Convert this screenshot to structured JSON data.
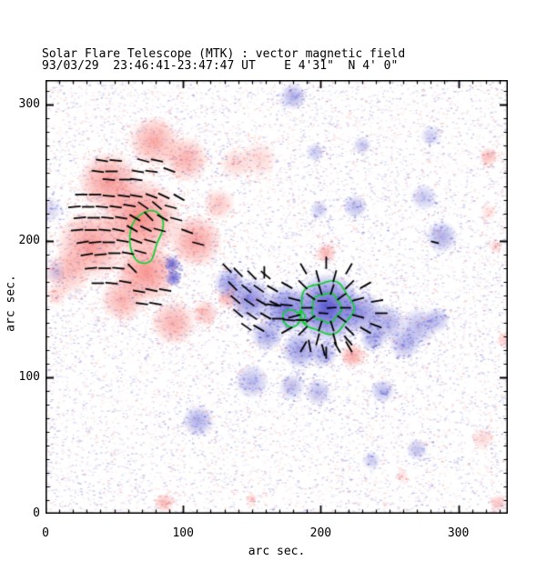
{
  "header": {
    "title": "Solar Flare Telescope (MTK) : vector magnetic field",
    "subtitle": "93/03/29  23:46:41-23:47:47 UT    E 4'31\"  N 4' 0\""
  },
  "chart_data": {
    "type": "heatmap",
    "subtype": "vector-magnetogram",
    "title": "Solar Flare Telescope (MTK) : vector magnetic field",
    "subtitle": "93/03/29  23:46:41-23:47:47 UT    E 4'31\"  N 4' 0\"",
    "xlabel": "arc sec.",
    "ylabel": "arc sec.",
    "xlim": [
      0,
      336
    ],
    "ylim": [
      0,
      318
    ],
    "x_ticks": [
      0,
      100,
      200,
      300
    ],
    "y_ticks": [
      0,
      100,
      200,
      300
    ],
    "minor_tick_step": 10,
    "grid": false,
    "legend": "none",
    "colors": {
      "positive_polarity": "#f46e69",
      "negative_polarity": "#4646cd",
      "positive_rgb": [
        246,
        112,
        106
      ],
      "negative_rgb": [
        72,
        72,
        205
      ],
      "contour": "#0ed22e",
      "vector": "#000000",
      "frame": "#000000",
      "background": "#ffffff"
    },
    "polarity_note": "red = positive line-of-sight field, blue = negative; black segments = transverse field; green = flare/sunspot contours",
    "blobs": [
      {
        "x": 69,
        "y": 217,
        "r": 30,
        "pol": "P",
        "i": 0.8
      },
      {
        "x": 46,
        "y": 243,
        "r": 23,
        "pol": "P",
        "i": 0.7
      },
      {
        "x": 79,
        "y": 273,
        "r": 19,
        "pol": "P",
        "i": 0.6
      },
      {
        "x": 102,
        "y": 260,
        "r": 17,
        "pol": "P",
        "i": 0.55
      },
      {
        "x": 33,
        "y": 197,
        "r": 26,
        "pol": "P",
        "i": 0.7
      },
      {
        "x": 73,
        "y": 177,
        "r": 23,
        "pol": "P",
        "i": 0.75
      },
      {
        "x": 109,
        "y": 200,
        "r": 20,
        "pol": "P",
        "i": 0.65
      },
      {
        "x": 56,
        "y": 157,
        "r": 17,
        "pol": "P",
        "i": 0.55
      },
      {
        "x": 16,
        "y": 177,
        "r": 17,
        "pol": "P",
        "i": 0.45
      },
      {
        "x": 93,
        "y": 140,
        "r": 17,
        "pol": "P",
        "i": 0.55
      },
      {
        "x": 116,
        "y": 147,
        "r": 10,
        "pol": "P",
        "i": 0.45
      },
      {
        "x": 132,
        "y": 158,
        "r": 8,
        "pol": "P",
        "i": 0.5
      },
      {
        "x": 126,
        "y": 227,
        "r": 12,
        "pol": "P",
        "i": 0.4
      },
      {
        "x": 155,
        "y": 260,
        "r": 14,
        "pol": "P",
        "i": 0.28
      },
      {
        "x": 138,
        "y": 257,
        "r": 12,
        "pol": "P",
        "i": 0.3
      },
      {
        "x": 204,
        "y": 191,
        "r": 8,
        "pol": "P",
        "i": 0.5
      },
      {
        "x": 223,
        "y": 116,
        "r": 9,
        "pol": "P",
        "i": 0.6
      },
      {
        "x": 322,
        "y": 262,
        "r": 7,
        "pol": "P",
        "i": 0.5
      },
      {
        "x": 318,
        "y": 55,
        "r": 8,
        "pol": "P",
        "i": 0.3
      },
      {
        "x": 329,
        "y": 8,
        "r": 6,
        "pol": "P",
        "i": 0.45
      },
      {
        "x": 86,
        "y": 8,
        "r": 7,
        "pol": "P",
        "i": 0.5
      },
      {
        "x": 150,
        "y": 11,
        "r": 4,
        "pol": "P",
        "i": 0.4
      },
      {
        "x": 333,
        "y": 128,
        "r": 5,
        "pol": "P",
        "i": 0.35
      },
      {
        "x": 322,
        "y": 221,
        "r": 6,
        "pol": "P",
        "i": 0.25
      },
      {
        "x": 327,
        "y": 196,
        "r": 5,
        "pol": "P",
        "i": 0.3
      },
      {
        "x": 8,
        "y": 160,
        "r": 8,
        "pol": "P",
        "i": 0.3
      },
      {
        "x": 259,
        "y": 28,
        "r": 5,
        "pol": "P",
        "i": 0.25
      },
      {
        "x": 205,
        "y": 151,
        "r": 26,
        "pol": "N",
        "i": 0.92
      },
      {
        "x": 175,
        "y": 150,
        "r": 18,
        "pol": "N",
        "i": 0.75
      },
      {
        "x": 149,
        "y": 157,
        "r": 16,
        "pol": "N",
        "i": 0.65
      },
      {
        "x": 134,
        "y": 169,
        "r": 12,
        "pol": "N",
        "i": 0.55
      },
      {
        "x": 230,
        "y": 147,
        "r": 16,
        "pol": "N",
        "i": 0.6
      },
      {
        "x": 248,
        "y": 140,
        "r": 14,
        "pol": "N",
        "i": 0.45
      },
      {
        "x": 271,
        "y": 137,
        "r": 14,
        "pol": "N",
        "i": 0.4
      },
      {
        "x": 185,
        "y": 120,
        "r": 14,
        "pol": "N",
        "i": 0.55
      },
      {
        "x": 202,
        "y": 117,
        "r": 10,
        "pol": "N",
        "i": 0.5
      },
      {
        "x": 161,
        "y": 131,
        "r": 12,
        "pol": "N",
        "i": 0.5
      },
      {
        "x": 179,
        "y": 93,
        "r": 10,
        "pol": "N",
        "i": 0.38
      },
      {
        "x": 198,
        "y": 89,
        "r": 10,
        "pol": "N",
        "i": 0.38
      },
      {
        "x": 245,
        "y": 90,
        "r": 9,
        "pol": "N",
        "i": 0.4
      },
      {
        "x": 150,
        "y": 97,
        "r": 13,
        "pol": "N",
        "i": 0.38
      },
      {
        "x": 111,
        "y": 68,
        "r": 12,
        "pol": "N",
        "i": 0.45
      },
      {
        "x": 270,
        "y": 47,
        "r": 8,
        "pol": "N",
        "i": 0.35
      },
      {
        "x": 238,
        "y": 129,
        "r": 10,
        "pol": "N",
        "i": 0.5
      },
      {
        "x": 261,
        "y": 125,
        "r": 12,
        "pol": "N",
        "i": 0.42
      },
      {
        "x": 284,
        "y": 142,
        "r": 10,
        "pol": "N",
        "i": 0.38
      },
      {
        "x": 180,
        "y": 306,
        "r": 10,
        "pol": "N",
        "i": 0.45
      },
      {
        "x": 196,
        "y": 265,
        "r": 7,
        "pol": "N",
        "i": 0.32
      },
      {
        "x": 230,
        "y": 270,
        "r": 7,
        "pol": "N",
        "i": 0.32
      },
      {
        "x": 199,
        "y": 223,
        "r": 7,
        "pol": "N",
        "i": 0.32
      },
      {
        "x": 225,
        "y": 225,
        "r": 9,
        "pol": "N",
        "i": 0.38
      },
      {
        "x": 275,
        "y": 232,
        "r": 10,
        "pol": "N",
        "i": 0.32
      },
      {
        "x": 288,
        "y": 203,
        "r": 12,
        "pol": "N",
        "i": 0.45
      },
      {
        "x": 92,
        "y": 183,
        "r": 6,
        "pol": "N",
        "i": 0.85
      },
      {
        "x": 93,
        "y": 173,
        "r": 6,
        "pol": "N",
        "i": 0.8
      },
      {
        "x": 3,
        "y": 223,
        "r": 10,
        "pol": "N",
        "i": 0.22
      },
      {
        "x": 7,
        "y": 177,
        "r": 8,
        "pol": "N",
        "i": 0.22
      },
      {
        "x": 280,
        "y": 277,
        "r": 8,
        "pol": "N",
        "i": 0.28
      },
      {
        "x": 237,
        "y": 39,
        "r": 7,
        "pol": "N",
        "i": 0.3
      }
    ],
    "vectors": [
      [
        41,
        259,
        -10
      ],
      [
        51,
        259,
        -5
      ],
      [
        71,
        259,
        -15
      ],
      [
        81,
        259,
        -12
      ],
      [
        38,
        251,
        -8
      ],
      [
        48,
        251,
        0
      ],
      [
        67,
        251,
        -10
      ],
      [
        77,
        251,
        -8
      ],
      [
        90,
        252,
        -20
      ],
      [
        46,
        245,
        -5
      ],
      [
        58,
        245,
        0
      ],
      [
        66,
        245,
        -8
      ],
      [
        26,
        234,
        0
      ],
      [
        36,
        234,
        0
      ],
      [
        46,
        233,
        -5
      ],
      [
        57,
        233,
        -8
      ],
      [
        66,
        233,
        -10
      ],
      [
        77,
        233,
        -20
      ],
      [
        86,
        233,
        -25
      ],
      [
        97,
        232,
        -30
      ],
      [
        21,
        225,
        5
      ],
      [
        31,
        225,
        0
      ],
      [
        41,
        225,
        -5
      ],
      [
        51,
        225,
        -8
      ],
      [
        61,
        226,
        -10
      ],
      [
        71,
        226,
        -35
      ],
      [
        81,
        226,
        -40
      ],
      [
        91,
        225,
        -15
      ],
      [
        25,
        217,
        5
      ],
      [
        35,
        217,
        0
      ],
      [
        45,
        217,
        -5
      ],
      [
        55,
        217,
        -10
      ],
      [
        65,
        217,
        -30
      ],
      [
        75,
        218,
        -45
      ],
      [
        85,
        217,
        -30
      ],
      [
        95,
        216,
        -15
      ],
      [
        23,
        208,
        5
      ],
      [
        33,
        208,
        0
      ],
      [
        43,
        208,
        -5
      ],
      [
        53,
        208,
        -12
      ],
      [
        63,
        209,
        -30
      ],
      [
        73,
        209,
        -25
      ],
      [
        83,
        208,
        -15
      ],
      [
        27,
        199,
        10
      ],
      [
        36,
        199,
        5
      ],
      [
        46,
        199,
        0
      ],
      [
        56,
        200,
        -10
      ],
      [
        66,
        200,
        -20
      ],
      [
        76,
        200,
        -15
      ],
      [
        30,
        190,
        10
      ],
      [
        40,
        190,
        5
      ],
      [
        50,
        191,
        0
      ],
      [
        60,
        191,
        -10
      ],
      [
        69,
        192,
        -15
      ],
      [
        33,
        180,
        5
      ],
      [
        43,
        180,
        0
      ],
      [
        53,
        180,
        -5
      ],
      [
        63,
        180,
        -45
      ],
      [
        38,
        169,
        0
      ],
      [
        48,
        169,
        -5
      ],
      [
        58,
        170,
        -10
      ],
      [
        68,
        163,
        -10
      ],
      [
        77,
        164,
        -12
      ],
      [
        87,
        164,
        -10
      ],
      [
        70,
        154,
        -8
      ],
      [
        80,
        154,
        -10
      ],
      [
        103,
        207,
        -20
      ],
      [
        111,
        198,
        -15
      ],
      [
        140,
        177,
        -45
      ],
      [
        150,
        175,
        -45
      ],
      [
        160,
        175,
        -40
      ],
      [
        136,
        167,
        -45
      ],
      [
        146,
        165,
        -40
      ],
      [
        155,
        165,
        -35
      ],
      [
        165,
        165,
        -30
      ],
      [
        138,
        157,
        -40
      ],
      [
        148,
        155,
        -35
      ],
      [
        157,
        155,
        -30
      ],
      [
        167,
        154,
        -25
      ],
      [
        140,
        147,
        -40
      ],
      [
        150,
        145,
        -35
      ],
      [
        160,
        145,
        -30
      ],
      [
        146,
        137,
        -35
      ],
      [
        155,
        136,
        -30
      ],
      [
        169,
        143,
        0
      ],
      [
        177,
        142,
        -5
      ],
      [
        186,
        142,
        0
      ],
      [
        165,
        153,
        -10
      ],
      [
        175,
        153,
        -5
      ],
      [
        159,
        177,
        90
      ],
      [
        132,
        180,
        -45
      ],
      [
        201,
        156,
        180,
        7
      ],
      [
        208,
        151,
        185,
        7
      ],
      [
        202,
        147,
        175,
        7
      ],
      [
        241,
        156,
        10
      ],
      [
        244,
        147,
        0
      ],
      [
        240,
        138,
        -20
      ],
      [
        192,
        123,
        -80
      ],
      [
        202,
        120,
        -75
      ],
      [
        212,
        122,
        -60
      ],
      [
        220,
        127,
        -50
      ],
      [
        283,
        199,
        -15,
        6
      ]
    ],
    "vector_rings": {
      "center": [
        204,
        151
      ],
      "rings": [
        {
          "r": 14,
          "n": 10,
          "offset": 0,
          "len": 8,
          "skip": []
        },
        {
          "r": 24,
          "n": 12,
          "offset": 15,
          "len": 9,
          "skip": []
        },
        {
          "r": 33,
          "n": 12,
          "offset": 0,
          "len": 9,
          "skip": [
            0,
            180
          ]
        }
      ]
    },
    "contours": {
      "flare_contour": [
        [
          76,
          223
        ],
        [
          82,
          221
        ],
        [
          86,
          215
        ],
        [
          85,
          206
        ],
        [
          81,
          199
        ],
        [
          79,
          191
        ],
        [
          77,
          185
        ],
        [
          71,
          183
        ],
        [
          65,
          186
        ],
        [
          61.5,
          195
        ],
        [
          61,
          204
        ],
        [
          63,
          213
        ],
        [
          68,
          219
        ]
      ],
      "sunspot_outer": {
        "cx": 204,
        "cy": 151.3,
        "r": 19,
        "wobble": 1.3
      },
      "sunspot_inner": {
        "cx": 204,
        "cy": 151,
        "r": 10.5,
        "wobble": 0.8
      },
      "small_loop": [
        [
          178,
          150
        ],
        [
          183,
          148
        ],
        [
          186,
          143
        ],
        [
          183,
          138
        ],
        [
          178,
          136
        ],
        [
          173,
          140
        ],
        [
          172,
          146
        ],
        [
          175,
          149
        ]
      ],
      "connector": [
        [
          183,
          147
        ],
        [
          186,
          149
        ],
        [
          189,
          145
        ],
        [
          187,
          141
        ],
        [
          190,
          139
        ]
      ]
    },
    "noise": {
      "count": 13000,
      "blue_fraction": 0.58
    }
  }
}
